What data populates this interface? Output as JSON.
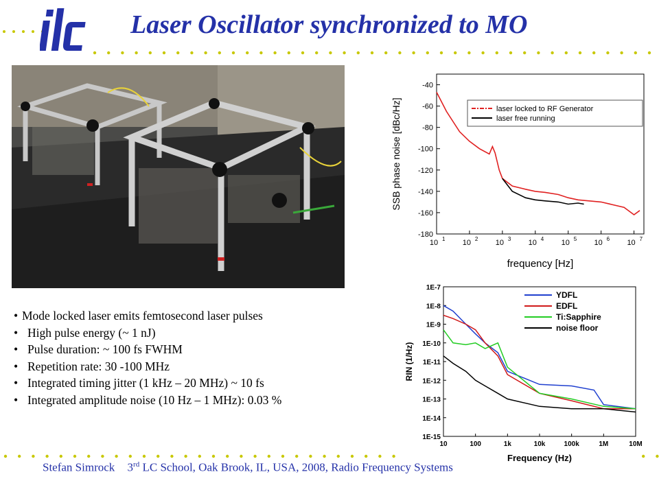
{
  "header": {
    "title": "Laser Oscillator synchronized to MO",
    "logo_text": "ilc",
    "accent": "#2431a8",
    "dot_color": "#c8c800"
  },
  "photo": {
    "description_icon": "laser-enclosure-photo"
  },
  "bullets": [
    {
      "marker": "•",
      "text": "Mode locked laser emits femtosecond laser pulses"
    },
    {
      "marker": "•",
      "text": "High pulse energy (~ 1 nJ)"
    },
    {
      "marker": "•",
      "text": "Pulse duration: ~ 100 fs FWHM"
    },
    {
      "marker": "•",
      "text": "Repetition rate: 30 -100 MHz"
    },
    {
      "marker": "•",
      "text": "Integrated timing jitter (1 kHz – 20 MHz) ~ 10 fs"
    },
    {
      "marker": "•",
      "text": "Integrated amplitude noise (10 Hz – 1 MHz): 0.03 %"
    }
  ],
  "chart_data": [
    {
      "type": "line",
      "xlabel": "frequency [Hz]",
      "ylabel": "SSB phase noise [dBc/Hz]",
      "x_scale": "log",
      "xlim": [
        10,
        20000000
      ],
      "ylim": [
        -180,
        -30
      ],
      "y_ticks": [
        "-40",
        "-60",
        "-80",
        "-100",
        "-120",
        "-140",
        "-160",
        "-180"
      ],
      "x_ticks": [
        {
          "base": "10",
          "exp": "1"
        },
        {
          "base": "10",
          "exp": "2"
        },
        {
          "base": "10",
          "exp": "3"
        },
        {
          "base": "10",
          "exp": "4"
        },
        {
          "base": "10",
          "exp": "5"
        },
        {
          "base": "10",
          "exp": "6"
        },
        {
          "base": "10",
          "exp": "7"
        }
      ],
      "legend_position": "top-right",
      "series": [
        {
          "name": "laser locked to RF Generator",
          "color": "#e02020",
          "dash": "dashdot",
          "x": [
            10,
            20,
            50,
            100,
            200,
            400,
            500,
            600,
            800,
            1000,
            2000,
            5000,
            10000,
            20000,
            50000,
            100000,
            200000,
            1000000,
            5000000,
            10000000,
            15000000
          ],
          "y": [
            -47,
            -65,
            -84,
            -93,
            -100,
            -105,
            -98,
            -104,
            -120,
            -128,
            -135,
            -138,
            -140,
            -141,
            -143,
            -146,
            -148,
            -150,
            -155,
            -162,
            -158
          ]
        },
        {
          "name": "laser free running",
          "color": "#000000",
          "dash": "solid",
          "x": [
            1000,
            2000,
            5000,
            10000,
            20000,
            50000,
            100000,
            200000,
            300000
          ],
          "y": [
            -128,
            -140,
            -146,
            -148,
            -149,
            -150,
            -152,
            -151,
            -152
          ]
        }
      ]
    },
    {
      "type": "line",
      "xlabel": "Frequency (Hz)",
      "ylabel": "RIN (1/Hz)",
      "x_scale": "log",
      "y_scale": "log",
      "xlim": [
        10,
        10000000
      ],
      "ylim": [
        1e-15,
        1e-07
      ],
      "y_ticks": [
        "1E-7",
        "1E-8",
        "1E-9",
        "1E-10",
        "1E-11",
        "1E-12",
        "1E-13",
        "1E-14",
        "1E-15"
      ],
      "x_ticks": [
        "10",
        "100",
        "1k",
        "10k",
        "100k",
        "1M",
        "10M"
      ],
      "legend_position": "top-right",
      "series": [
        {
          "name": "YDFL",
          "color": "#1f3fcf",
          "x": [
            10,
            20,
            50,
            100,
            200,
            500,
            1000,
            10000,
            100000,
            500000,
            1000000,
            10000000
          ],
          "y": [
            1e-08,
            5e-09,
            1e-09,
            3e-10,
            1e-10,
            3e-11,
            3e-12,
            6e-13,
            5e-13,
            3e-13,
            5e-14,
            3e-14
          ]
        },
        {
          "name": "EDFL",
          "color": "#d01818",
          "x": [
            10,
            20,
            50,
            100,
            200,
            500,
            1000,
            10000,
            100000,
            1000000,
            10000000
          ],
          "y": [
            3e-09,
            2e-09,
            1e-09,
            5e-10,
            1e-10,
            2e-11,
            2e-12,
            2e-13,
            8e-14,
            3e-14,
            3e-14
          ]
        },
        {
          "name": "Ti:Sapphire",
          "color": "#22cc22",
          "x": [
            10,
            20,
            50,
            100,
            200,
            500,
            1000,
            10000,
            100000,
            1000000,
            10000000
          ],
          "y": [
            5e-10,
            1e-10,
            8e-11,
            1e-10,
            5e-11,
            1e-10,
            5e-12,
            2e-13,
            1e-13,
            4e-14,
            3e-14
          ]
        },
        {
          "name": "noise floor",
          "color": "#000000",
          "x": [
            10,
            20,
            50,
            100,
            200,
            500,
            1000,
            10000,
            100000,
            1000000,
            10000000
          ],
          "y": [
            2e-11,
            8e-12,
            3e-12,
            1e-12,
            5e-13,
            2e-13,
            1e-13,
            4e-14,
            3e-14,
            3e-14,
            2e-14
          ]
        }
      ]
    }
  ],
  "footer": {
    "name": "Stefan Simrock",
    "edition_num": "3",
    "edition_sup": "rd",
    "rest": " LC School, Oak Brook, IL, USA, 2008, Radio Frequency Systems"
  }
}
